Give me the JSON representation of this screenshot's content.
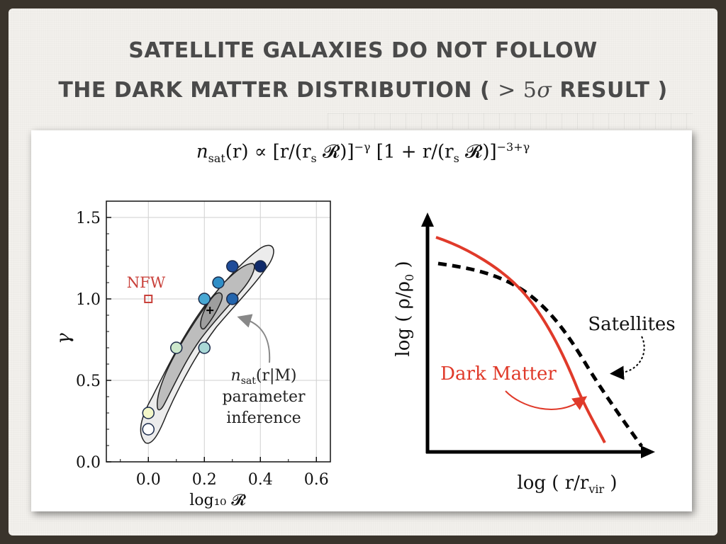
{
  "slide": {
    "title_line1": "SATELLITE GALAXIES DO NOT FOLLOW",
    "title_line2_a": "THE DARK MATTER DISTRIBUTION  ( ",
    "title_gt": ">",
    "title_5": " 5",
    "title_sigma": "σ",
    "title_line2_b": " RESULT )"
  },
  "formula": {
    "n": "n",
    "sat": "sat",
    "r_arg": "(r) ∝ [r/(r",
    "s1": "s",
    "R1": " 𝓡)]",
    "exp1": "−γ",
    "mid": " [1 + r/(r",
    "s2": "s",
    "R2": " 𝓡)]",
    "exp2": "−3+γ"
  },
  "chart_data": [
    {
      "type": "scatter",
      "title": "",
      "xlabel": "log₁₀ 𝓡",
      "ylabel": "γ",
      "xlim": [
        -0.15,
        0.65
      ],
      "ylim": [
        0.0,
        1.6
      ],
      "xticks": [
        0.0,
        0.2,
        0.4,
        0.6
      ],
      "xtick_labels": [
        "0.0",
        "0.2",
        "0.4",
        "0.6"
      ],
      "yticks": [
        0.0,
        0.5,
        1.0,
        1.5
      ],
      "ytick_labels": [
        "0.0",
        "0.5",
        "1.0",
        "1.5"
      ],
      "grid": true,
      "points": [
        {
          "x": 0.0,
          "y": 0.2,
          "color": "#ffffff"
        },
        {
          "x": 0.0,
          "y": 0.3,
          "color": "#f3f7c9"
        },
        {
          "x": 0.1,
          "y": 0.7,
          "color": "#cde8cc"
        },
        {
          "x": 0.2,
          "y": 0.7,
          "color": "#a9d8d6"
        },
        {
          "x": 0.2,
          "y": 1.0,
          "color": "#48a8d4"
        },
        {
          "x": 0.25,
          "y": 1.1,
          "color": "#2f8ec7"
        },
        {
          "x": 0.3,
          "y": 1.0,
          "color": "#2465ad"
        },
        {
          "x": 0.3,
          "y": 1.2,
          "color": "#1f4c99"
        },
        {
          "x": 0.4,
          "y": 1.2,
          "color": "#0f2a6b"
        }
      ],
      "nfw_marker": {
        "x": 0.0,
        "y": 1.0,
        "label": "NFW",
        "color": "#c9413b"
      },
      "best_fit_marker": {
        "x": 0.22,
        "y": 0.93,
        "symbol": "+"
      },
      "annotation": {
        "line1_n": "n",
        "line1_sub": "sat",
        "line1_rest": "(r|M)",
        "line2": "parameter",
        "line3": "inference"
      }
    },
    {
      "type": "line",
      "title": "",
      "xlabel": "log ( r/r",
      "xlabel_sub": "vir",
      "xlabel_end": " )",
      "ylabel": "log ( ρ/ρ",
      "ylabel_sub": "0",
      "ylabel_end": " )",
      "series": [
        {
          "name": "Dark Matter",
          "color": "#e03a2a",
          "style": "solid"
        },
        {
          "name": "Satellites",
          "color": "#000000",
          "style": "dashed"
        }
      ]
    }
  ]
}
